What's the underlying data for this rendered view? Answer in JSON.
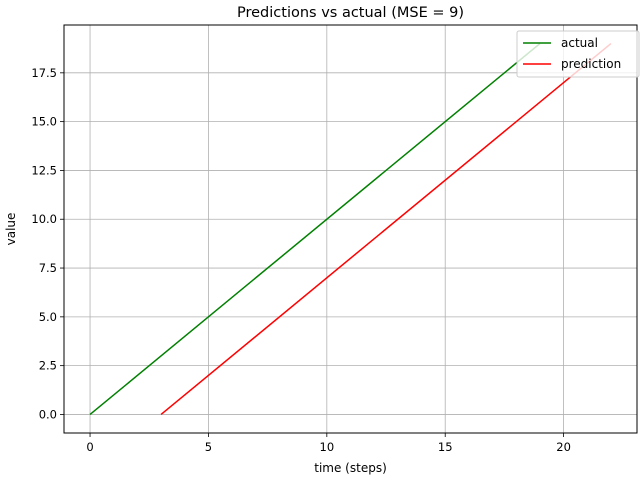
{
  "chart_data": {
    "type": "line",
    "title": "Predictions vs actual (MSE = 9)",
    "xlabel": "time (steps)",
    "ylabel": "value",
    "xlim": [
      -1.1,
      23.1
    ],
    "ylim": [
      -0.95,
      19.95
    ],
    "xticks": [
      0,
      5,
      10,
      15,
      20
    ],
    "xtick_labels": [
      "0",
      "5",
      "10",
      "15",
      "20"
    ],
    "yticks": [
      0,
      2.5,
      5,
      7.5,
      10,
      12.5,
      15,
      17.5
    ],
    "ytick_labels": [
      "0.0",
      "2.5",
      "5.0",
      "7.5",
      "10.0",
      "12.5",
      "15.0",
      "17.5"
    ],
    "grid": true,
    "legend_position": "top-right",
    "series": [
      {
        "name": "actual",
        "color": "#008000",
        "x": [
          0,
          19
        ],
        "y": [
          0,
          19
        ]
      },
      {
        "name": "prediction",
        "color": "#ff0000",
        "x": [
          3,
          22
        ],
        "y": [
          0,
          19
        ]
      }
    ]
  }
}
